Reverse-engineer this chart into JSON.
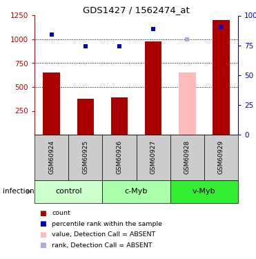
{
  "title": "GDS1427 / 1562474_at",
  "samples": [
    "GSM60924",
    "GSM60925",
    "GSM60926",
    "GSM60927",
    "GSM60928",
    "GSM60929"
  ],
  "bar_values": [
    650,
    375,
    390,
    975,
    650,
    1200
  ],
  "bar_absent": [
    false,
    false,
    false,
    false,
    true,
    false
  ],
  "rank_values": [
    1050,
    925,
    930,
    1110,
    1000,
    1130
  ],
  "rank_absent": [
    false,
    false,
    false,
    false,
    true,
    false
  ],
  "bar_color_normal": "#aa0000",
  "bar_color_absent": "#ffbbbb",
  "rank_color_normal": "#0000cc",
  "rank_color_absent": "#aaaadd",
  "groups": [
    {
      "label": "control",
      "samples": [
        0,
        1
      ],
      "color": "#ccffcc"
    },
    {
      "label": "c-Myb",
      "samples": [
        2,
        3
      ],
      "color": "#aaffaa"
    },
    {
      "label": "v-Myb",
      "samples": [
        4,
        5
      ],
      "color": "#33ee33"
    }
  ],
  "ylim_left": [
    0,
    1250
  ],
  "yticks_left": [
    250,
    500,
    750,
    1000,
    1250
  ],
  "ytick_labels_left": [
    "250",
    "500",
    "750",
    "1000",
    "1250"
  ],
  "yticks_right": [
    0,
    25,
    50,
    75,
    100
  ],
  "ytick_labels_right": [
    "0",
    "25",
    "50",
    "75",
    "100%"
  ],
  "left_axis_color": "#cc0000",
  "right_axis_color": "#0000cc",
  "bar_width": 0.5,
  "gridlines": [
    500,
    750,
    1000
  ],
  "infection_label": "infection",
  "legend_items": [
    {
      "color": "#aa0000",
      "label": "count"
    },
    {
      "color": "#0000cc",
      "label": "percentile rank within the sample"
    },
    {
      "color": "#ffbbbb",
      "label": "value, Detection Call = ABSENT"
    },
    {
      "color": "#aaaadd",
      "label": "rank, Detection Call = ABSENT"
    }
  ]
}
